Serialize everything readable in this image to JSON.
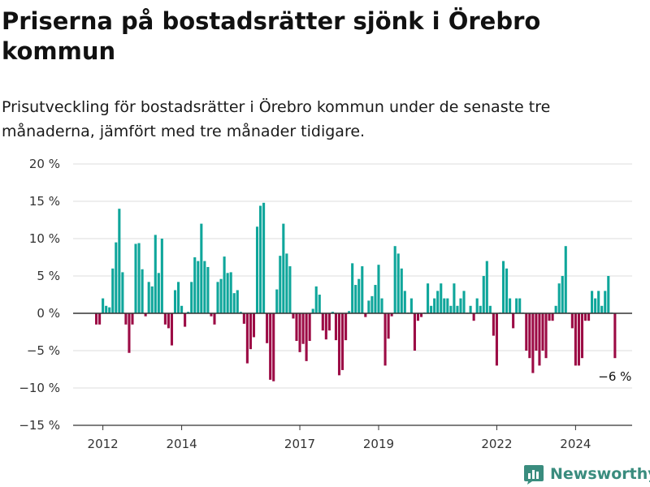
{
  "header": {
    "title": "Priserna på bostadsrätter sjönk i Örebro kommun",
    "subtitle": "Prisutveckling för bostadsrätter i Örebro kommun under de senaste tre månaderna, jämfört med tre månader tidigare."
  },
  "brand": {
    "name": "Newsworthy",
    "icon": "newsworthy-logo-icon"
  },
  "colors": {
    "positive": "#0fa69b",
    "negative": "#9c0b45",
    "grid": "#dddddd",
    "axis": "#333333"
  },
  "chart_data": {
    "type": "bar",
    "title": "Priserna på bostadsrätter sjönk i Örebro kommun",
    "xlabel": "",
    "ylabel": "",
    "ylim": [
      -15,
      20
    ],
    "y_ticks": [
      20,
      15,
      10,
      5,
      0,
      -5,
      -10,
      -15
    ],
    "y_tick_labels": [
      "20 %",
      "15 %",
      "10 %",
      "5 %",
      "0 %",
      "−5 %",
      "−10 %",
      "−15 %"
    ],
    "x_ticks": [
      {
        "label": "2012",
        "month_index": 2
      },
      {
        "label": "2014",
        "month_index": 26
      },
      {
        "label": "2017",
        "month_index": 62
      },
      {
        "label": "2019",
        "month_index": 86
      },
      {
        "label": "2022",
        "month_index": 122
      },
      {
        "label": "2024",
        "month_index": 146
      }
    ],
    "grid": true,
    "legend": "none",
    "annotation": {
      "text": "−6 %",
      "month_index": 158
    },
    "unit": "%",
    "values": [
      -1.5,
      -1.5,
      2.0,
      1.0,
      0.8,
      6.0,
      9.5,
      14.0,
      5.5,
      -1.5,
      -5.3,
      -1.5,
      9.3,
      9.4,
      5.9,
      -0.4,
      4.2,
      3.6,
      10.5,
      5.4,
      10.0,
      -1.5,
      -2.0,
      -4.3,
      3.1,
      4.2,
      1.0,
      -1.8,
      0.2,
      4.2,
      7.5,
      7.0,
      12.0,
      7.0,
      6.2,
      -0.4,
      -1.5,
      4.2,
      4.6,
      7.6,
      5.4,
      5.5,
      2.7,
      3.1,
      0.2,
      -1.4,
      -6.7,
      -4.8,
      -3.2,
      11.6,
      14.4,
      14.8,
      -4.0,
      -8.9,
      -9.1,
      3.2,
      7.7,
      12.0,
      8.0,
      6.3,
      -0.7,
      -3.7,
      -5.2,
      -4.1,
      -6.4,
      -3.7,
      0.6,
      3.6,
      2.5,
      -2.3,
      -3.5,
      -2.3,
      0.2,
      -3.6,
      -8.3,
      -7.6,
      -3.6,
      0.3,
      6.7,
      3.8,
      4.6,
      6.3,
      -0.5,
      1.7,
      2.3,
      3.8,
      6.5,
      2.0,
      -7.0,
      -3.4,
      -0.4,
      9.0,
      8.0,
      6.0,
      3.0,
      0.1,
      2.0,
      -5.0,
      -1.0,
      -0.5,
      0.1,
      4.0,
      1.0,
      2.0,
      3.0,
      4.0,
      2.0,
      2.0,
      1.0,
      4.0,
      1.0,
      2.0,
      3.0,
      0.1,
      1.0,
      -1.0,
      2.0,
      1.0,
      5.0,
      7.0,
      1.0,
      -3.0,
      -7.0,
      0.1,
      7.0,
      6.0,
      2.0,
      -2.0,
      2.0,
      2.0,
      0.1,
      -5.0,
      -6.0,
      -8.0,
      -5.0,
      -7.0,
      -5.0,
      -6.0,
      -1.0,
      -1.0,
      1.0,
      4.0,
      5.0,
      9.0,
      0.1,
      -2.0,
      -7.0,
      -7.0,
      -6.0,
      -1.0,
      -1.0,
      3.0,
      2.0,
      3.0,
      1.0,
      3.0,
      5.0,
      0.1,
      -6.0
    ]
  }
}
